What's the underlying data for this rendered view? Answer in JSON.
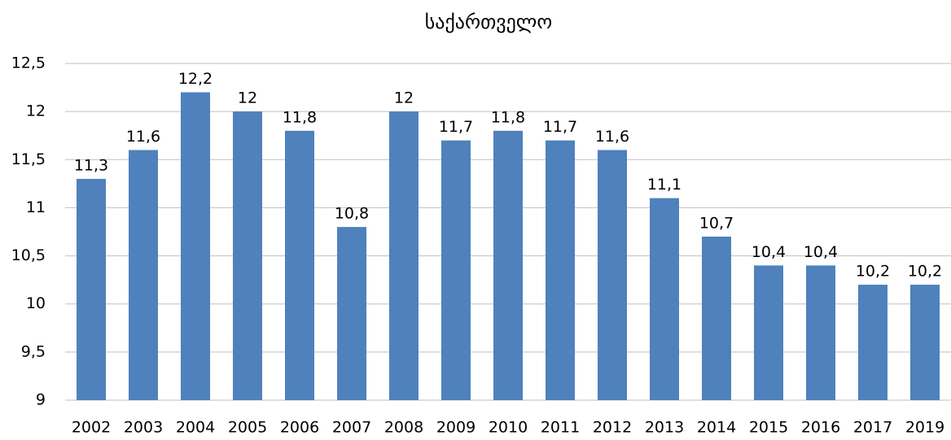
{
  "chart_data": {
    "type": "bar",
    "title": "საქართველო",
    "categories": [
      "2002",
      "2003",
      "2004",
      "2005",
      "2006",
      "2007",
      "2008",
      "2009",
      "2010",
      "2011",
      "2012",
      "2013",
      "2014",
      "2015",
      "2016",
      "2017",
      "2019"
    ],
    "values": [
      11.3,
      11.6,
      12.2,
      12,
      11.8,
      10.8,
      12,
      11.7,
      11.8,
      11.7,
      11.6,
      11.1,
      10.7,
      10.4,
      10.4,
      10.2,
      10.2
    ],
    "value_labels": [
      "11,3",
      "11,6",
      "12,2",
      "12",
      "11,8",
      "10,8",
      "12",
      "11,7",
      "11,8",
      "11,7",
      "11,6",
      "11,1",
      "10,7",
      "10,4",
      "10,4",
      "10,2",
      "10,2"
    ],
    "color": "#4f81bd",
    "ylim": [
      9,
      12.5
    ],
    "yticks": [
      9,
      {
        "value": 9.5,
        "label": "9,5"
      },
      10,
      {
        "value": 10.5,
        "label": "10,5"
      },
      11,
      {
        "value": 11.5,
        "label": "11,5"
      },
      12,
      {
        "value": 12.5,
        "label": "12,5"
      }
    ],
    "grid": true
  }
}
